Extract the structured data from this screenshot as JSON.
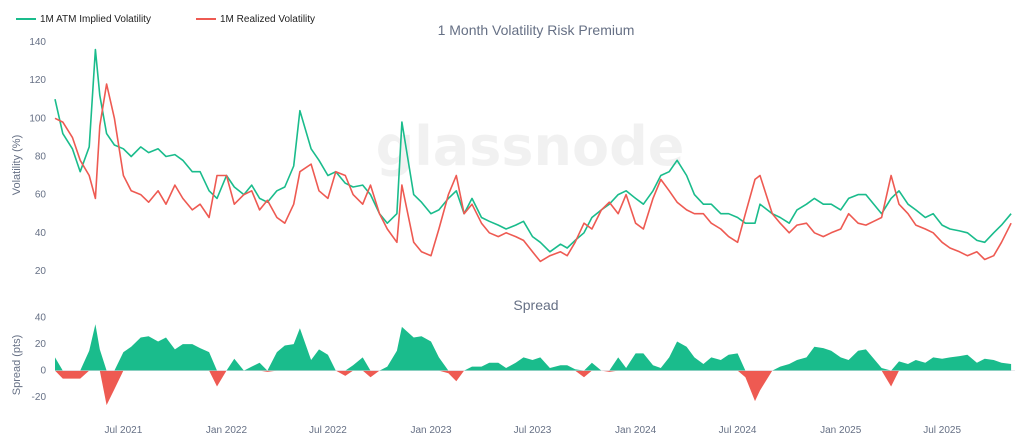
{
  "colors": {
    "implied": "#1abc8c",
    "realized": "#ee5a52",
    "spread_pos": "#1abc8c",
    "spread_neg": "#ee5a52",
    "text": "#667085"
  },
  "watermark": "glassnode",
  "chart_data": [
    {
      "type": "line",
      "title": "1 Month Volatility Risk Premium",
      "ylabel": "Volatility (%)",
      "ylim": [
        10,
        140
      ],
      "yticks": [
        20,
        40,
        60,
        80,
        100,
        120,
        140
      ],
      "legend_position": "top-left",
      "grid": false,
      "x": [
        "2021-03-01",
        "2021-03-15",
        "2021-04-01",
        "2021-04-15",
        "2021-05-01",
        "2021-05-12",
        "2021-05-20",
        "2021-06-01",
        "2021-06-15",
        "2021-07-01",
        "2021-07-15",
        "2021-08-01",
        "2021-08-15",
        "2021-09-01",
        "2021-09-15",
        "2021-10-01",
        "2021-10-15",
        "2021-11-01",
        "2021-11-15",
        "2021-12-01",
        "2021-12-15",
        "2022-01-01",
        "2022-01-15",
        "2022-02-01",
        "2022-02-15",
        "2022-03-01",
        "2022-03-15",
        "2022-04-01",
        "2022-04-15",
        "2022-05-01",
        "2022-05-12",
        "2022-06-01",
        "2022-06-15",
        "2022-07-01",
        "2022-07-15",
        "2022-08-01",
        "2022-08-15",
        "2022-09-01",
        "2022-09-15",
        "2022-10-01",
        "2022-10-15",
        "2022-11-01",
        "2022-11-10",
        "2022-12-01",
        "2022-12-15",
        "2023-01-01",
        "2023-01-15",
        "2023-02-01",
        "2023-02-15",
        "2023-03-01",
        "2023-03-15",
        "2023-04-01",
        "2023-04-15",
        "2023-05-01",
        "2023-05-15",
        "2023-06-01",
        "2023-06-15",
        "2023-07-01",
        "2023-07-15",
        "2023-08-01",
        "2023-08-20",
        "2023-09-01",
        "2023-09-15",
        "2023-10-01",
        "2023-10-15",
        "2023-11-01",
        "2023-11-15",
        "2023-12-01",
        "2023-12-15",
        "2024-01-01",
        "2024-01-15",
        "2024-02-01",
        "2024-02-15",
        "2024-03-01",
        "2024-03-15",
        "2024-04-01",
        "2024-04-15",
        "2024-05-01",
        "2024-05-15",
        "2024-06-01",
        "2024-06-15",
        "2024-07-01",
        "2024-07-15",
        "2024-08-01",
        "2024-08-10",
        "2024-09-01",
        "2024-09-15",
        "2024-10-01",
        "2024-10-15",
        "2024-11-01",
        "2024-11-15",
        "2024-12-01",
        "2024-12-15",
        "2025-01-01",
        "2025-01-15",
        "2025-02-01",
        "2025-02-15",
        "2025-03-01",
        "2025-03-15",
        "2025-04-01",
        "2025-04-15",
        "2025-05-01",
        "2025-05-15",
        "2025-06-01",
        "2025-06-15",
        "2025-07-01",
        "2025-07-15",
        "2025-08-01",
        "2025-08-15",
        "2025-09-01",
        "2025-09-15",
        "2025-10-01",
        "2025-10-15",
        "2025-11-01"
      ],
      "series": [
        {
          "name": "1M ATM Implied Volatility",
          "color": "#1abc8c",
          "values": [
            110,
            92,
            84,
            72,
            85,
            136,
            112,
            92,
            86,
            84,
            80,
            85,
            82,
            84,
            80,
            81,
            78,
            72,
            72,
            62,
            58,
            70,
            64,
            60,
            65,
            58,
            56,
            62,
            64,
            75,
            104,
            84,
            78,
            70,
            72,
            66,
            64,
            65,
            60,
            50,
            45,
            50,
            98,
            60,
            56,
            50,
            52,
            58,
            62,
            50,
            58,
            48,
            46,
            44,
            42,
            44,
            46,
            38,
            35,
            30,
            34,
            32,
            36,
            40,
            48,
            52,
            55,
            60,
            62,
            58,
            55,
            62,
            70,
            72,
            78,
            70,
            60,
            55,
            55,
            50,
            50,
            48,
            45,
            45,
            55,
            50,
            48,
            45,
            52,
            55,
            58,
            55,
            55,
            52,
            58,
            60,
            60,
            55,
            50,
            58,
            62,
            55,
            52,
            48,
            50,
            44,
            42,
            41,
            40,
            36,
            35,
            40,
            44,
            50
          ]
        },
        {
          "name": "1M Realized Volatility",
          "color": "#ee5a52",
          "values": [
            100,
            98,
            90,
            78,
            70,
            58,
            96,
            118,
            100,
            70,
            62,
            60,
            56,
            62,
            55,
            65,
            58,
            52,
            55,
            48,
            70,
            70,
            55,
            60,
            62,
            52,
            57,
            48,
            45,
            55,
            72,
            76,
            62,
            58,
            72,
            70,
            60,
            55,
            65,
            50,
            42,
            35,
            65,
            35,
            30,
            28,
            42,
            60,
            70,
            50,
            55,
            45,
            40,
            38,
            40,
            38,
            36,
            30,
            25,
            28,
            30,
            28,
            35,
            45,
            42,
            52,
            56,
            50,
            60,
            45,
            42,
            58,
            68,
            62,
            56,
            52,
            50,
            50,
            45,
            42,
            38,
            35,
            50,
            68,
            70,
            50,
            45,
            40,
            44,
            45,
            40,
            38,
            40,
            42,
            50,
            45,
            44,
            46,
            48,
            70,
            55,
            50,
            44,
            42,
            40,
            35,
            32,
            30,
            28,
            30,
            26,
            28,
            35,
            45
          ]
        }
      ]
    },
    {
      "type": "area",
      "title": "Spread",
      "ylabel": "Spread (pts)",
      "ylim": [
        -32,
        42
      ],
      "yticks": [
        -20,
        0,
        20,
        40
      ],
      "xtick_labels": [
        "Jul 2021",
        "Jan 2022",
        "Jul 2022",
        "Jan 2023",
        "Jul 2023",
        "Jan 2024",
        "Jul 2024",
        "Jan 2025",
        "Jul 2025"
      ],
      "xtick_dates": [
        "2021-07-01",
        "2022-01-01",
        "2022-07-01",
        "2023-01-01",
        "2023-07-01",
        "2024-01-01",
        "2024-07-01",
        "2025-01-01",
        "2025-07-01"
      ],
      "x_range": [
        "2021-03-01",
        "2025-11-08"
      ],
      "series": [
        {
          "name": "Spread",
          "values": [
            10,
            -6,
            -6,
            -6,
            15,
            35,
            16,
            -26,
            -14,
            14,
            18,
            25,
            26,
            22,
            25,
            16,
            20,
            20,
            17,
            14,
            -12,
            0,
            9,
            0,
            3,
            6,
            -1,
            14,
            19,
            20,
            32,
            8,
            16,
            12,
            0,
            -4,
            4,
            10,
            -5,
            0,
            3,
            15,
            33,
            25,
            26,
            22,
            10,
            -2,
            -8,
            0,
            3,
            3,
            6,
            6,
            2,
            6,
            10,
            8,
            10,
            2,
            4,
            4,
            1,
            -5,
            6,
            0,
            -1,
            10,
            2,
            13,
            13,
            4,
            2,
            10,
            22,
            18,
            10,
            5,
            10,
            8,
            12,
            13,
            -5,
            -23,
            -15,
            0,
            3,
            5,
            8,
            10,
            18,
            17,
            15,
            10,
            8,
            15,
            16,
            9,
            2,
            -12,
            7,
            5,
            8,
            6,
            10,
            9,
            10,
            11,
            12,
            6,
            9,
            8,
            6,
            5
          ]
        }
      ]
    }
  ]
}
